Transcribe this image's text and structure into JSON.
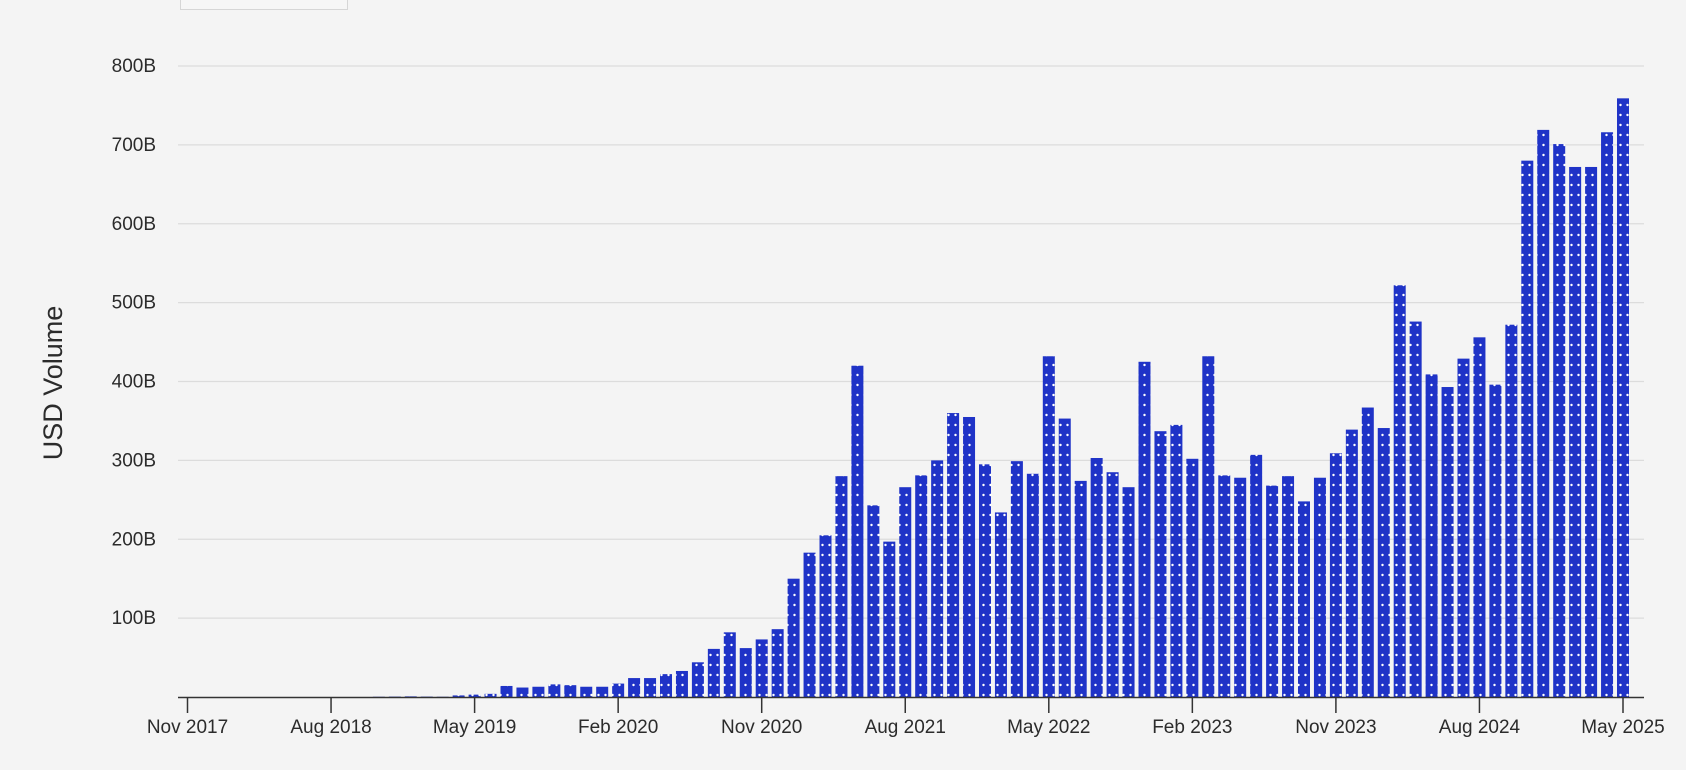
{
  "chart_data": {
    "type": "bar",
    "title": "",
    "xlabel": "",
    "ylabel": "USD Volume",
    "ylim": [
      0,
      800
    ],
    "yunit": "B",
    "y_ticks": [
      {
        "value": 100,
        "label": "100B"
      },
      {
        "value": 200,
        "label": "200B"
      },
      {
        "value": 300,
        "label": "300B"
      },
      {
        "value": 400,
        "label": "400B"
      },
      {
        "value": 500,
        "label": "500B"
      },
      {
        "value": 600,
        "label": "600B"
      },
      {
        "value": 700,
        "label": "700B"
      },
      {
        "value": 800,
        "label": "800B"
      }
    ],
    "x_ticks": [
      "Nov 2017",
      "Aug 2018",
      "May 2019",
      "Feb 2020",
      "Nov 2020",
      "Aug 2021",
      "May 2022",
      "Feb 2023",
      "Nov 2023",
      "Aug 2024",
      "May 2025"
    ],
    "grid": true,
    "bar_color": "#1f33c7",
    "dot_color": "#ffffff",
    "categories": [
      "Nov 2017",
      "Dec 2017",
      "Jan 2018",
      "Feb 2018",
      "Mar 2018",
      "Apr 2018",
      "May 2018",
      "Jun 2018",
      "Jul 2018",
      "Aug 2018",
      "Sep 2018",
      "Oct 2018",
      "Nov 2018",
      "Dec 2018",
      "Jan 2019",
      "Feb 2019",
      "Mar 2019",
      "Apr 2019",
      "May 2019",
      "Jun 2019",
      "Jul 2019",
      "Aug 2019",
      "Sep 2019",
      "Oct 2019",
      "Nov 2019",
      "Dec 2019",
      "Jan 2020",
      "Feb 2020",
      "Mar 2020",
      "Apr 2020",
      "May 2020",
      "Jun 2020",
      "Jul 2020",
      "Aug 2020",
      "Sep 2020",
      "Oct 2020",
      "Nov 2020",
      "Dec 2020",
      "Jan 2021",
      "Feb 2021",
      "Mar 2021",
      "Apr 2021",
      "May 2021",
      "Jun 2021",
      "Jul 2021",
      "Aug 2021",
      "Sep 2021",
      "Oct 2021",
      "Nov 2021",
      "Dec 2021",
      "Jan 2022",
      "Feb 2022",
      "Mar 2022",
      "Apr 2022",
      "May 2022",
      "Jun 2022",
      "Jul 2022",
      "Aug 2022",
      "Sep 2022",
      "Oct 2022",
      "Nov 2022",
      "Dec 2022",
      "Jan 2023",
      "Feb 2023",
      "Mar 2023",
      "Apr 2023",
      "May 2023",
      "Jun 2023",
      "Jul 2023",
      "Aug 2023",
      "Sep 2023",
      "Oct 2023",
      "Nov 2023",
      "Dec 2023",
      "Jan 2024",
      "Feb 2024",
      "Mar 2024",
      "Apr 2024",
      "May 2024",
      "Jun 2024",
      "Jul 2024",
      "Aug 2024",
      "Sep 2024",
      "Oct 2024",
      "Nov 2024",
      "Dec 2024",
      "Jan 2025",
      "Feb 2025",
      "Mar 2025",
      "Apr 2025",
      "May 2025"
    ],
    "values": [
      0,
      0,
      0,
      0,
      0,
      0,
      0,
      0,
      0,
      0,
      0,
      0,
      0.3,
      0.5,
      0.8,
      0.5,
      0.3,
      2,
      3,
      4,
      14,
      12,
      13,
      16,
      15,
      13,
      13,
      17,
      24,
      24,
      29,
      33,
      44,
      61,
      82,
      62,
      73,
      86,
      150,
      183,
      205,
      280,
      420,
      243,
      197,
      266,
      281,
      300,
      360,
      355,
      295,
      234,
      299,
      283,
      432,
      353,
      274,
      303,
      285,
      266,
      425,
      337,
      345,
      302,
      432,
      281,
      278,
      307,
      268,
      280,
      248,
      278,
      309,
      339,
      367,
      341,
      522,
      476,
      409,
      393,
      429,
      456,
      396,
      472,
      680,
      719,
      701,
      672,
      672,
      716,
      759
    ]
  }
}
